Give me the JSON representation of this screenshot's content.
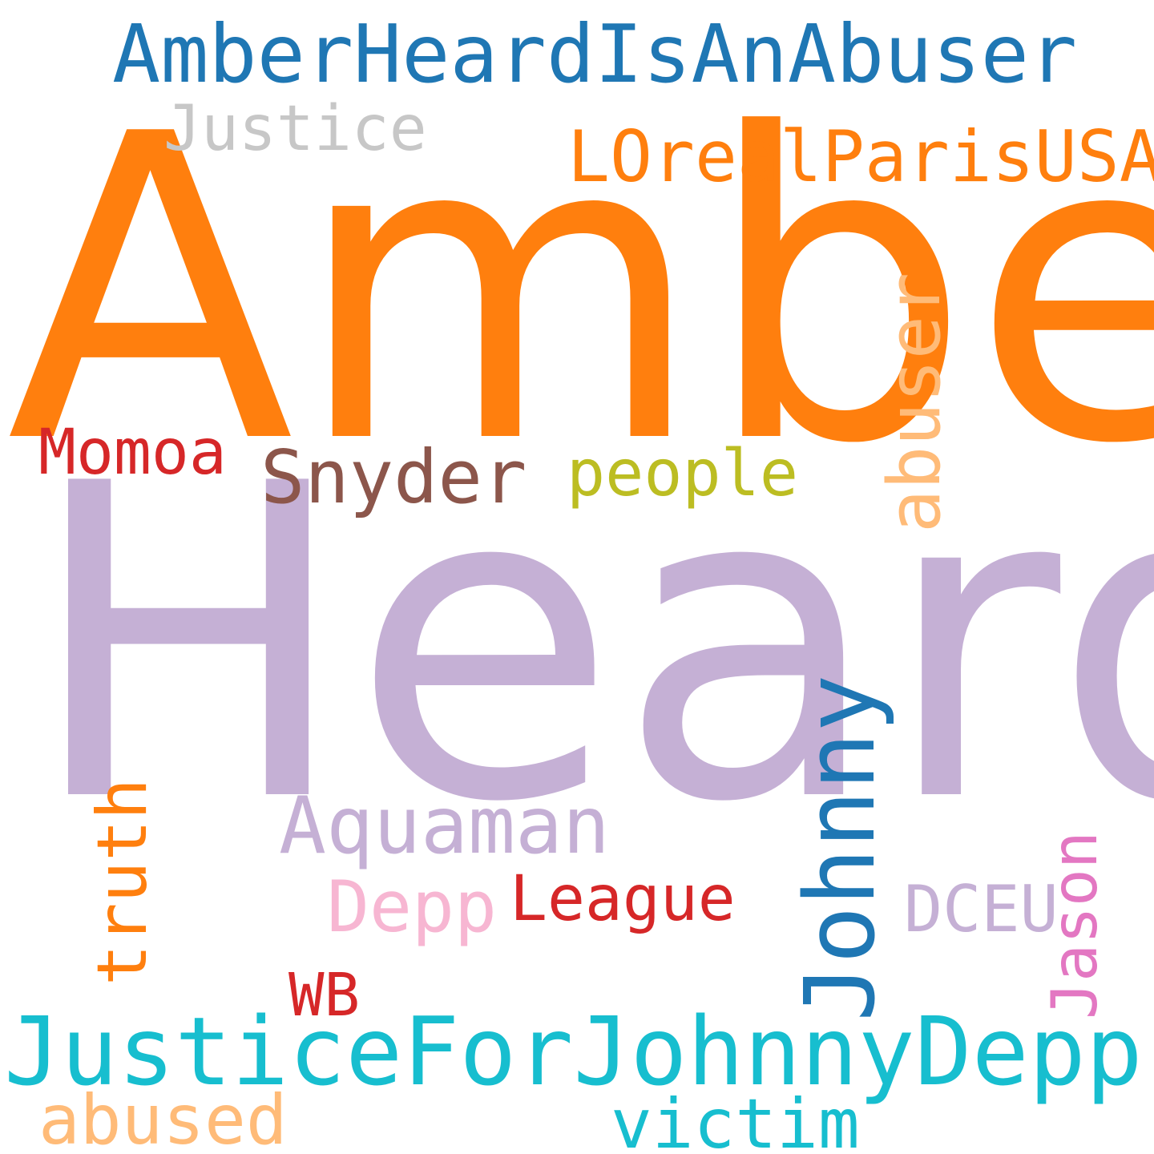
{
  "words": [
    {
      "id": "amber",
      "text": "Amber",
      "color": "#ff7f0e"
    },
    {
      "id": "heard",
      "text": "Heard",
      "color": "#c5b0d5"
    },
    {
      "id": "amberheardisanabuser",
      "text": "AmberHeardIsAnAbuser",
      "color": "#1f77b4"
    },
    {
      "id": "justiceforjohnnydepp",
      "text": "JusticeForJohnnyDepp",
      "color": "#17becf"
    },
    {
      "id": "lorealparisusa",
      "text": "LOrealParisUSA",
      "color": "#ff7f0e"
    },
    {
      "id": "justice",
      "text": "Justice",
      "color": "#c7c7c7"
    },
    {
      "id": "johnny",
      "text": "Johnny",
      "color": "#1f77b4"
    },
    {
      "id": "snyder",
      "text": "Snyder",
      "color": "#8c564b"
    },
    {
      "id": "abuser",
      "text": "abuser",
      "color": "#ffbb78"
    },
    {
      "id": "aquaman",
      "text": "Aquaman",
      "color": "#c5b0d5"
    },
    {
      "id": "momoa",
      "text": "Momoa",
      "color": "#d62728"
    },
    {
      "id": "people",
      "text": "people",
      "color": "#bcbd22"
    },
    {
      "id": "truth",
      "text": "truth",
      "color": "#ff7f0e"
    },
    {
      "id": "league",
      "text": "League",
      "color": "#d62728"
    },
    {
      "id": "depp",
      "text": "Depp",
      "color": "#f7b6d2"
    },
    {
      "id": "dceu",
      "text": "DCEU",
      "color": "#c5b0d5"
    },
    {
      "id": "jason",
      "text": "Jason",
      "color": "#e377c2"
    },
    {
      "id": "wb",
      "text": "WB",
      "color": "#d62728"
    },
    {
      "id": "abused",
      "text": "abused",
      "color": "#ffbb78"
    },
    {
      "id": "victim",
      "text": "victim",
      "color": "#17becf"
    }
  ]
}
